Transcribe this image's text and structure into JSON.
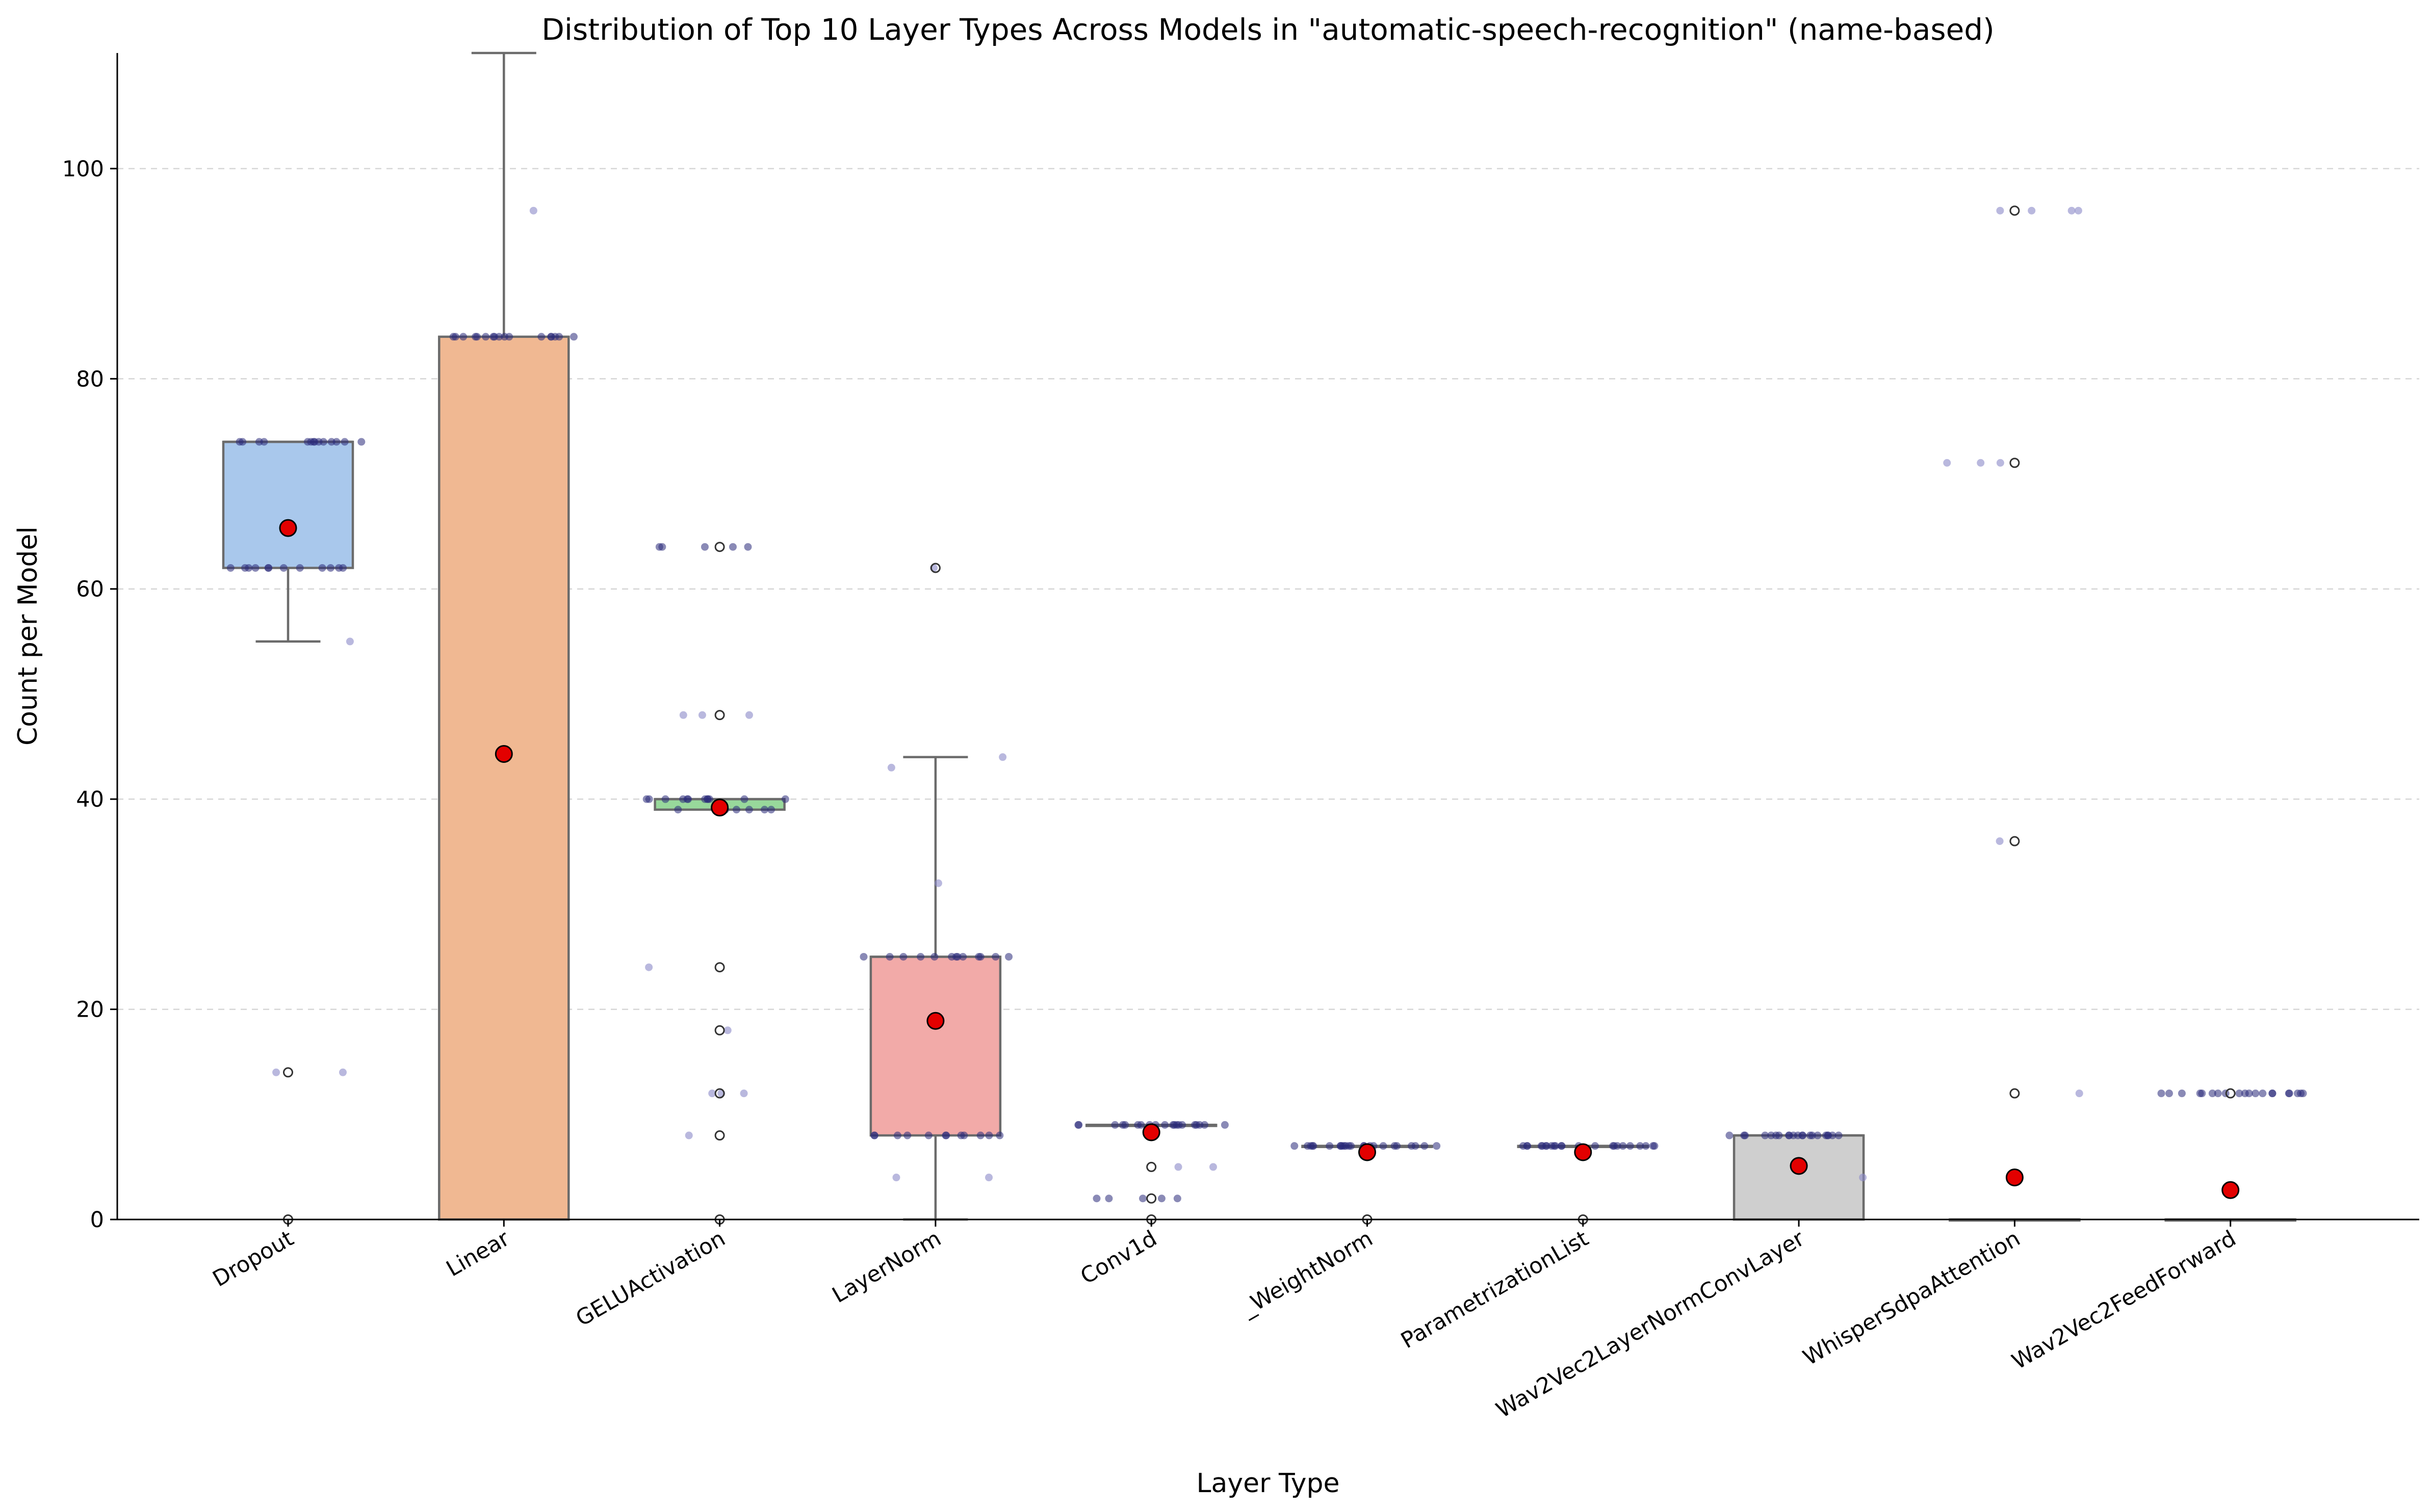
{
  "chart_data": {
    "type": "box",
    "title": "Distribution of Top 10 Layer Types Across Models in \"automatic-speech-recognition\" (name-based)",
    "xlabel": "Layer Type",
    "ylabel": "Count per Model",
    "ylim": [
      0,
      111
    ],
    "yticks": [
      0,
      20,
      40,
      60,
      80,
      100
    ],
    "grid": "horizontal dashed",
    "categories": [
      "Dropout",
      "Linear",
      "GELUActivation",
      "LayerNorm",
      "Conv1d",
      "_WeightNorm",
      "ParametrizationList",
      "Wav2Vec2LayerNormConvLayer",
      "WhisperSdpaAttention",
      "Wav2Vec2FeedForward"
    ],
    "boxes": [
      {
        "category": "Dropout",
        "color": "#a9c8ec",
        "q1": 62,
        "median": 74,
        "q3": 74,
        "whisker_low": 55,
        "whisker_high": 74,
        "mean": 65.8,
        "outliers": [
          14,
          0
        ]
      },
      {
        "category": "Linear",
        "color": "#f0b892",
        "q1": 0,
        "median": 84,
        "q3": 84,
        "whisker_low": 0,
        "whisker_high": 111,
        "mean": 44.3,
        "outliers": []
      },
      {
        "category": "GELUActivation",
        "color": "#98d89b",
        "q1": 39,
        "median": 40,
        "q3": 40,
        "whisker_low": 39,
        "whisker_high": 40,
        "mean": 39.2,
        "outliers": [
          64,
          48,
          24,
          18,
          12,
          8,
          0
        ]
      },
      {
        "category": "LayerNorm",
        "color": "#f2aaa8",
        "q1": 8,
        "median": 25,
        "q3": 25,
        "whisker_low": 0,
        "whisker_high": 44,
        "mean": 18.9,
        "outliers": [
          62
        ]
      },
      {
        "category": "Conv1d",
        "color": "#c2b2dd",
        "q1": 9,
        "median": 9,
        "q3": 9,
        "whisker_low": 9,
        "whisker_high": 9,
        "mean": 8.3,
        "outliers": [
          5,
          2,
          0
        ]
      },
      {
        "category": "_WeightNorm",
        "color": "#c9a99f",
        "q1": 7,
        "median": 7,
        "q3": 7,
        "whisker_low": 7,
        "whisker_high": 7,
        "mean": 6.4,
        "outliers": [
          0
        ]
      },
      {
        "category": "ParametrizationList",
        "color": "#f1bde0",
        "q1": 7,
        "median": 7,
        "q3": 7,
        "whisker_low": 7,
        "whisker_high": 7,
        "mean": 6.4,
        "outliers": [
          0
        ]
      },
      {
        "category": "Wav2Vec2LayerNormConvLayer",
        "color": "#cfcfcf",
        "q1": 0,
        "median": 8,
        "q3": 8,
        "whisker_low": 0,
        "whisker_high": 8,
        "mean": 5.1,
        "outliers": []
      },
      {
        "category": "WhisperSdpaAttention",
        "color": "#dcdc9a",
        "q1": 0,
        "median": 0,
        "q3": 0,
        "whisker_low": 0,
        "whisker_high": 0,
        "mean": 4.0,
        "outliers": [
          96,
          72,
          36,
          12
        ]
      },
      {
        "category": "Wav2Vec2FeedForward",
        "color": "#a5dbe6",
        "q1": 0,
        "median": 0,
        "q3": 0,
        "whisker_low": 0,
        "whisker_high": 0,
        "mean": 2.8,
        "outliers": [
          12
        ]
      }
    ],
    "points": [
      {
        "category": "Dropout",
        "values": [
          74,
          74,
          74,
          74,
          74,
          74,
          74,
          74,
          74,
          74,
          74,
          74,
          74,
          74,
          62,
          62,
          62,
          62,
          62,
          62,
          62,
          62,
          62,
          62,
          62,
          62,
          55,
          14,
          14
        ]
      },
      {
        "category": "Linear",
        "values": [
          84,
          84,
          84,
          84,
          84,
          84,
          84,
          84,
          84,
          84,
          84,
          84,
          84,
          84,
          84,
          84,
          84,
          96
        ]
      },
      {
        "category": "GELUActivation",
        "values": [
          64,
          64,
          64,
          64,
          64,
          48,
          48,
          48,
          40,
          40,
          40,
          40,
          40,
          40,
          40,
          40,
          40,
          40,
          40,
          40,
          39,
          39,
          39,
          39,
          39,
          39,
          39,
          24,
          18,
          12,
          12,
          12,
          8
        ]
      },
      {
        "category": "LayerNorm",
        "values": [
          62,
          44,
          43,
          32,
          25,
          25,
          25,
          25,
          25,
          25,
          25,
          25,
          25,
          25,
          25,
          25,
          25,
          8,
          8,
          8,
          8,
          8,
          8,
          8,
          8,
          8,
          8,
          8,
          8,
          4,
          4
        ]
      },
      {
        "category": "Conv1d",
        "values": [
          9,
          9,
          9,
          9,
          9,
          9,
          9,
          9,
          9,
          9,
          9,
          9,
          9,
          9,
          9,
          9,
          9,
          9,
          9,
          9,
          5,
          5,
          2,
          2,
          2,
          2,
          2
        ]
      },
      {
        "category": "_WeightNorm",
        "values": [
          7,
          7,
          7,
          7,
          7,
          7,
          7,
          7,
          7,
          7,
          7,
          7,
          7,
          7,
          7,
          7,
          7,
          7,
          7,
          7,
          7,
          7,
          7,
          7
        ]
      },
      {
        "category": "ParametrizationList",
        "values": [
          7,
          7,
          7,
          7,
          7,
          7,
          7,
          7,
          7,
          7,
          7,
          7,
          7,
          7,
          7,
          7,
          7,
          7,
          7,
          7,
          7,
          7,
          7
        ]
      },
      {
        "category": "Wav2Vec2LayerNormConvLayer",
        "values": [
          8,
          8,
          8,
          8,
          8,
          8,
          8,
          8,
          8,
          8,
          8,
          8,
          8,
          8,
          8,
          8,
          8,
          8,
          8,
          8,
          8,
          4
        ]
      },
      {
        "category": "WhisperSdpaAttention",
        "values": [
          96,
          96,
          96,
          96,
          72,
          72,
          72,
          36,
          12
        ]
      },
      {
        "category": "Wav2Vec2FeedForward",
        "values": [
          12,
          12,
          12,
          12,
          12,
          12,
          12,
          12,
          12,
          12,
          12,
          12,
          12,
          12,
          12,
          12,
          12,
          12,
          12,
          12
        ]
      }
    ],
    "colors": {
      "box_edge": "#6b6b6b",
      "mean_marker": "#e30000",
      "point": "#8b88c8",
      "point_dark": "#2a2a7a",
      "grid": "#d6d6d6"
    }
  }
}
